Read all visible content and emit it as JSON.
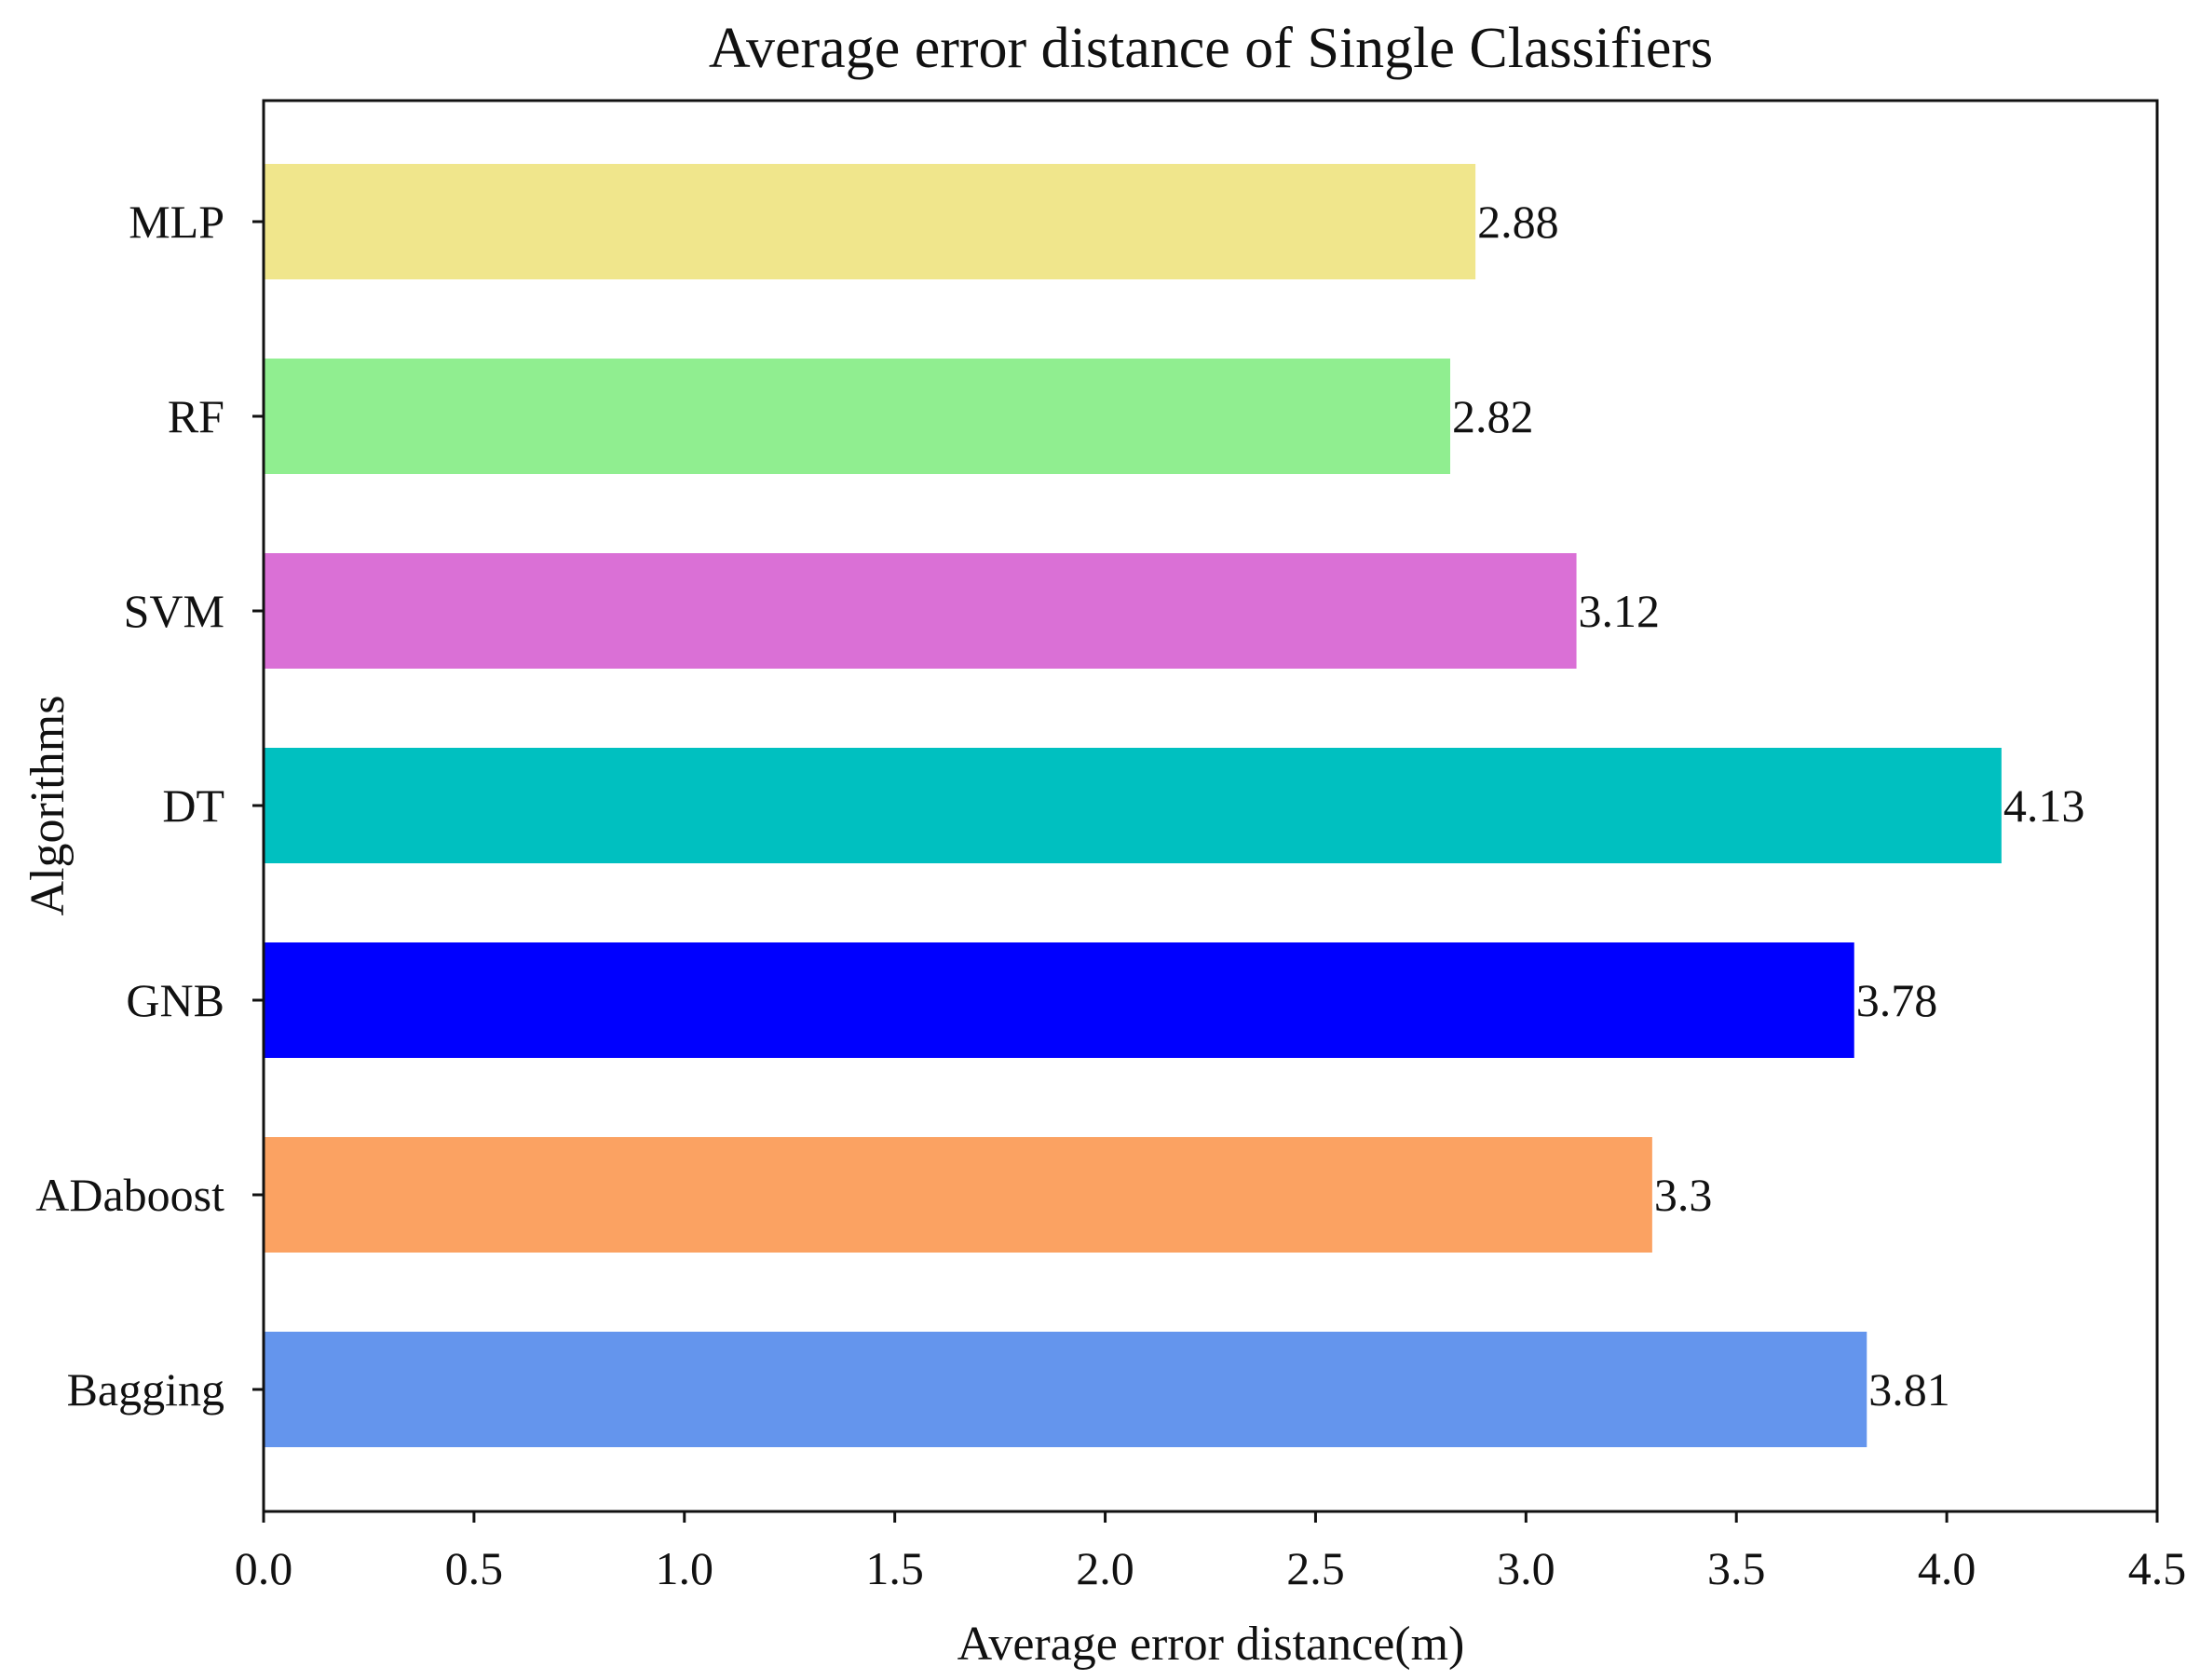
{
  "chart_data": {
    "type": "bar",
    "orientation": "horizontal",
    "title": "Average error distance of Single Classifiers",
    "xlabel": "Average error distance(m)",
    "ylabel": "Algorithms",
    "xlim": [
      0,
      4.5
    ],
    "xticks": [
      "0.0",
      "0.5",
      "1.0",
      "1.5",
      "2.0",
      "2.5",
      "3.0",
      "3.5",
      "4.0",
      "4.5"
    ],
    "grid": false,
    "legend": "none",
    "categories": [
      "MLP",
      "RF",
      "SVM",
      "DT",
      "GNB",
      "ADaboost",
      "Bagging"
    ],
    "values": [
      2.88,
      2.82,
      3.12,
      4.13,
      3.78,
      3.3,
      3.81
    ],
    "value_labels": [
      "2.88",
      "2.82",
      "3.12",
      "4.13",
      "3.78",
      "3.3",
      "3.81"
    ],
    "colors": [
      "#F0E68C",
      "#90EE90",
      "#DA70D6",
      "#00C0C0",
      "#0000FF",
      "#FBA262",
      "#6495ED"
    ]
  }
}
